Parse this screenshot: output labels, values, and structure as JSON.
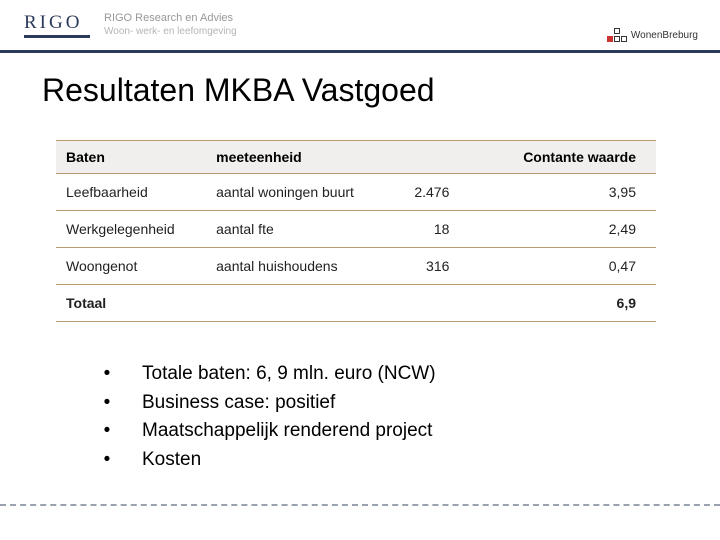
{
  "header": {
    "logo_main": "RIGO",
    "logo_line1": "RIGO Research en Advies",
    "logo_line2": "Woon- werk- en leefomgeving",
    "right_logo_text": "WonenBreburg",
    "rule_color": "#2b3a5a"
  },
  "title": "Resultaten MKBA Vastgoed",
  "table": {
    "columns": [
      "Baten",
      "meeteenheid",
      "",
      "Contante waarde"
    ],
    "header_bg": "#f0efee",
    "border_color": "#b89a74",
    "rows": [
      {
        "c0": "Leefbaarheid",
        "c1": "aantal woningen buurt",
        "c2": "2.476",
        "c3": "3,95"
      },
      {
        "c0": "Werkgelegenheid",
        "c1": "aantal fte",
        "c2": "18",
        "c3": "2,49"
      },
      {
        "c0": "Woongenot",
        "c1": "aantal huishoudens",
        "c2": "316",
        "c3": "0,47"
      }
    ],
    "total": {
      "c0": "Totaal",
      "c1": "",
      "c2": "",
      "c3": "6,9"
    }
  },
  "bullets": [
    "Totale baten: 6, 9 mln. euro (NCW)",
    "Business case: positief",
    "Maatschappelijk renderend project",
    "Kosten"
  ],
  "colors": {
    "text": "#000000",
    "muted": "#9a9896",
    "dashed": "#9aa2ae"
  }
}
